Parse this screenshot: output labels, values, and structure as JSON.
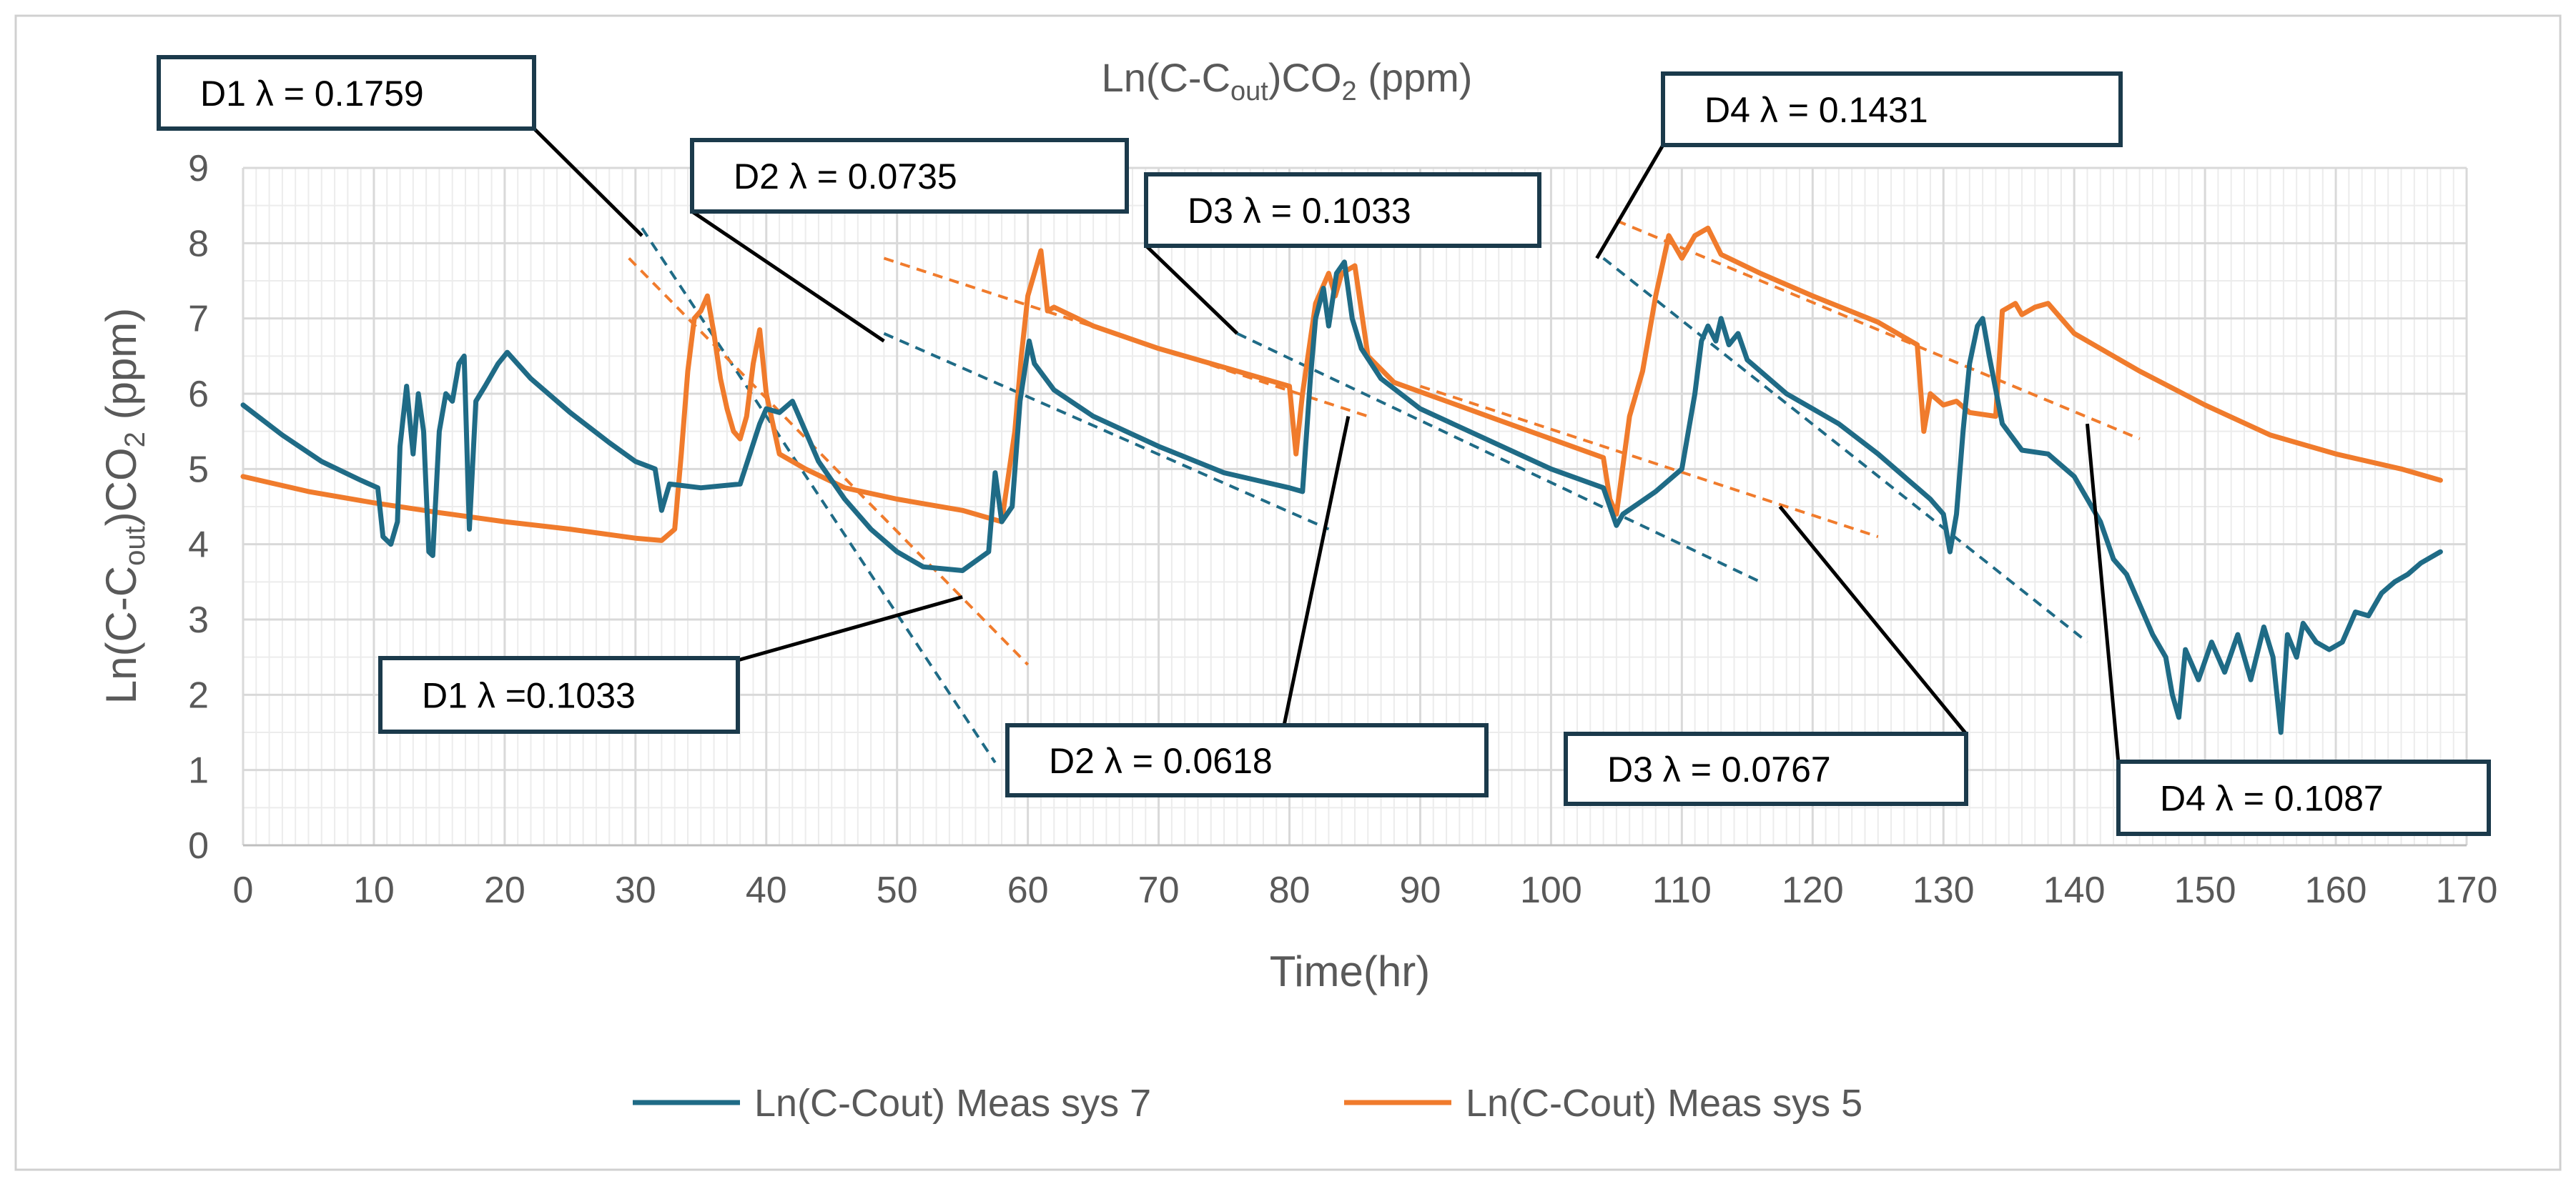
{
  "chart_data": {
    "type": "line",
    "title": "Ln(C-C",
    "title_sub": "out",
    "title_mid": ")CO",
    "title_sub2": "2",
    "title_end": " (ppm)",
    "xlabel": "Time(hr)",
    "ylabel": "Ln(C-C",
    "ylabel_sub": "out",
    "ylabel_mid": ")CO",
    "ylabel_sub2": "2",
    "ylabel_end": " (ppm)",
    "xlim": [
      0,
      170
    ],
    "ylim": [
      0,
      9
    ],
    "x_ticks": [
      "0",
      "10",
      "20",
      "30",
      "40",
      "50",
      "60",
      "70",
      "80",
      "90",
      "100",
      "110",
      "120",
      "130",
      "140",
      "150",
      "160",
      "170"
    ],
    "y_ticks": [
      "0",
      "1",
      "2",
      "3",
      "4",
      "5",
      "6",
      "7",
      "8",
      "9"
    ],
    "colors": {
      "sys7": "#1f6b86",
      "sys5": "#f07b2c",
      "grid": "#d9d9d9",
      "callout_border": "#1b3a4b"
    },
    "series": [
      {
        "name": "Ln(C-Cout) Meas sys 7",
        "color": "#1f6b86",
        "points": [
          [
            0,
            5.85
          ],
          [
            3,
            5.45
          ],
          [
            6,
            5.1
          ],
          [
            9,
            4.85
          ],
          [
            10.3,
            4.75
          ],
          [
            10.7,
            4.1
          ],
          [
            11.3,
            4.0
          ],
          [
            11.8,
            4.3
          ],
          [
            12,
            5.3
          ],
          [
            12.5,
            6.1
          ],
          [
            13,
            5.2
          ],
          [
            13.4,
            6.0
          ],
          [
            13.8,
            5.5
          ],
          [
            14.2,
            3.9
          ],
          [
            14.5,
            3.85
          ],
          [
            15,
            5.5
          ],
          [
            15.5,
            6.0
          ],
          [
            16,
            5.9
          ],
          [
            16.5,
            6.4
          ],
          [
            16.9,
            6.5
          ],
          [
            17.3,
            4.2
          ],
          [
            17.8,
            5.9
          ],
          [
            18.5,
            6.1
          ],
          [
            19.5,
            6.4
          ],
          [
            20.2,
            6.55
          ],
          [
            22,
            6.2
          ],
          [
            25,
            5.75
          ],
          [
            28,
            5.35
          ],
          [
            30,
            5.1
          ],
          [
            31.5,
            5.0
          ],
          [
            32,
            4.45
          ],
          [
            32.6,
            4.8
          ],
          [
            35,
            4.75
          ],
          [
            38,
            4.8
          ],
          [
            39.5,
            5.6
          ],
          [
            40,
            5.8
          ],
          [
            41,
            5.75
          ],
          [
            42,
            5.9
          ],
          [
            44,
            5.1
          ],
          [
            46,
            4.6
          ],
          [
            48,
            4.2
          ],
          [
            50,
            3.9
          ],
          [
            52,
            3.7
          ],
          [
            55,
            3.65
          ],
          [
            57,
            3.9
          ],
          [
            57.5,
            4.95
          ],
          [
            58,
            4.3
          ],
          [
            58.8,
            4.5
          ],
          [
            59.4,
            5.9
          ],
          [
            60.1,
            6.7
          ],
          [
            60.5,
            6.4
          ],
          [
            62,
            6.05
          ],
          [
            65,
            5.7
          ],
          [
            70,
            5.3
          ],
          [
            75,
            4.95
          ],
          [
            80,
            4.75
          ],
          [
            81,
            4.7
          ],
          [
            81.6,
            6.2
          ],
          [
            82,
            7.0
          ],
          [
            82.6,
            7.4
          ],
          [
            83,
            6.9
          ],
          [
            83.6,
            7.6
          ],
          [
            84.2,
            7.75
          ],
          [
            84.8,
            7.0
          ],
          [
            85.5,
            6.6
          ],
          [
            87,
            6.2
          ],
          [
            90,
            5.8
          ],
          [
            95,
            5.4
          ],
          [
            100,
            5.0
          ],
          [
            104,
            4.75
          ],
          [
            105,
            4.25
          ],
          [
            105.5,
            4.4
          ],
          [
            108,
            4.7
          ],
          [
            110,
            5.0
          ],
          [
            111,
            6.0
          ],
          [
            111.5,
            6.7
          ],
          [
            112,
            6.9
          ],
          [
            112.6,
            6.7
          ],
          [
            113,
            7.0
          ],
          [
            113.6,
            6.65
          ],
          [
            114.3,
            6.8
          ],
          [
            115,
            6.45
          ],
          [
            118,
            6.0
          ],
          [
            122,
            5.6
          ],
          [
            125,
            5.2
          ],
          [
            128,
            4.75
          ],
          [
            129,
            4.6
          ],
          [
            130,
            4.4
          ],
          [
            130.5,
            3.9
          ],
          [
            131,
            4.4
          ],
          [
            131.5,
            5.5
          ],
          [
            132,
            6.4
          ],
          [
            132.6,
            6.9
          ],
          [
            133,
            7.0
          ],
          [
            133.5,
            6.5
          ],
          [
            134.5,
            5.6
          ],
          [
            136,
            5.25
          ],
          [
            138,
            5.2
          ],
          [
            140,
            4.9
          ],
          [
            142,
            4.3
          ],
          [
            143,
            3.8
          ],
          [
            144,
            3.6
          ],
          [
            145,
            3.2
          ],
          [
            146,
            2.8
          ],
          [
            147,
            2.5
          ],
          [
            147.5,
            2.0
          ],
          [
            148,
            1.7
          ],
          [
            148.5,
            2.6
          ],
          [
            149.5,
            2.2
          ],
          [
            150.5,
            2.7
          ],
          [
            151.5,
            2.3
          ],
          [
            152.5,
            2.8
          ],
          [
            153.5,
            2.2
          ],
          [
            154.5,
            2.9
          ],
          [
            155.2,
            2.5
          ],
          [
            155.8,
            1.5
          ],
          [
            156.3,
            2.8
          ],
          [
            157,
            2.5
          ],
          [
            157.5,
            2.95
          ],
          [
            158.5,
            2.7
          ],
          [
            159.5,
            2.6
          ],
          [
            160.5,
            2.7
          ],
          [
            161.5,
            3.1
          ],
          [
            162.5,
            3.05
          ],
          [
            163.5,
            3.35
          ],
          [
            164.5,
            3.5
          ],
          [
            165.5,
            3.6
          ],
          [
            166.5,
            3.75
          ],
          [
            168,
            3.9
          ]
        ]
      },
      {
        "name": "Ln(C-Cout) Meas sys 5",
        "color": "#f07b2c",
        "points": [
          [
            0,
            4.9
          ],
          [
            5,
            4.7
          ],
          [
            10,
            4.55
          ],
          [
            15,
            4.42
          ],
          [
            20,
            4.3
          ],
          [
            25,
            4.2
          ],
          [
            30,
            4.08
          ],
          [
            32,
            4.05
          ],
          [
            33,
            4.2
          ],
          [
            33.5,
            5.2
          ],
          [
            34,
            6.3
          ],
          [
            34.5,
            7.0
          ],
          [
            35,
            7.1
          ],
          [
            35.5,
            7.3
          ],
          [
            36,
            6.8
          ],
          [
            36.5,
            6.2
          ],
          [
            37,
            5.8
          ],
          [
            37.5,
            5.5
          ],
          [
            38,
            5.4
          ],
          [
            38.5,
            5.7
          ],
          [
            39,
            6.4
          ],
          [
            39.5,
            6.85
          ],
          [
            40,
            6.0
          ],
          [
            41,
            5.2
          ],
          [
            43,
            5.0
          ],
          [
            46,
            4.75
          ],
          [
            50,
            4.6
          ],
          [
            55,
            4.45
          ],
          [
            58,
            4.3
          ],
          [
            59,
            5.5
          ],
          [
            59.5,
            6.5
          ],
          [
            60,
            7.3
          ],
          [
            61,
            7.9
          ],
          [
            61.5,
            7.1
          ],
          [
            62,
            7.15
          ],
          [
            65,
            6.9
          ],
          [
            70,
            6.6
          ],
          [
            75,
            6.35
          ],
          [
            80,
            6.1
          ],
          [
            80.5,
            5.2
          ],
          [
            81,
            6.0
          ],
          [
            82,
            7.2
          ],
          [
            83,
            7.6
          ],
          [
            83.5,
            7.3
          ],
          [
            84,
            7.6
          ],
          [
            85,
            7.7
          ],
          [
            86,
            6.5
          ],
          [
            88,
            6.15
          ],
          [
            92,
            5.9
          ],
          [
            96,
            5.65
          ],
          [
            100,
            5.4
          ],
          [
            104,
            5.15
          ],
          [
            104.5,
            4.6
          ],
          [
            105,
            4.4
          ],
          [
            106,
            5.7
          ],
          [
            107,
            6.3
          ],
          [
            108,
            7.3
          ],
          [
            109,
            8.1
          ],
          [
            110,
            7.8
          ],
          [
            111,
            8.1
          ],
          [
            112,
            8.2
          ],
          [
            113,
            7.85
          ],
          [
            116,
            7.6
          ],
          [
            120,
            7.3
          ],
          [
            125,
            6.95
          ],
          [
            128,
            6.65
          ],
          [
            128.5,
            5.5
          ],
          [
            129,
            6.0
          ],
          [
            130,
            5.85
          ],
          [
            131,
            5.9
          ],
          [
            132,
            5.75
          ],
          [
            134,
            5.7
          ],
          [
            134.5,
            7.1
          ],
          [
            135.5,
            7.2
          ],
          [
            136,
            7.05
          ],
          [
            137,
            7.15
          ],
          [
            138,
            7.2
          ],
          [
            139,
            7.0
          ],
          [
            140,
            6.8
          ],
          [
            145,
            6.3
          ],
          [
            150,
            5.85
          ],
          [
            155,
            5.45
          ],
          [
            160,
            5.2
          ],
          [
            165,
            5.0
          ],
          [
            168,
            4.85
          ]
        ]
      }
    ],
    "fit_lines": [
      {
        "label": "D1 sys7 fit",
        "color": "#1f6b86",
        "from": [
          30.5,
          8.2
        ],
        "to": [
          57.5,
          1.1
        ]
      },
      {
        "label": "D2 sys7 fit",
        "color": "#1f6b86",
        "from": [
          49,
          6.8
        ],
        "to": [
          83,
          4.2
        ]
      },
      {
        "label": "D3 sys7 fit",
        "color": "#1f6b86",
        "from": [
          76,
          6.8
        ],
        "to": [
          116,
          3.5
        ]
      },
      {
        "label": "D4 sys7 fit",
        "color": "#1f6b86",
        "from": [
          104,
          7.8
        ],
        "to": [
          141,
          2.7
        ]
      },
      {
        "label": "D1 sys5 fit",
        "color": "#f07b2c",
        "from": [
          29.5,
          7.8
        ],
        "to": [
          60,
          2.4
        ]
      },
      {
        "label": "D2 sys5 fit",
        "color": "#f07b2c",
        "from": [
          49,
          7.8
        ],
        "to": [
          86,
          5.7
        ]
      },
      {
        "label": "D3 sys5 fit",
        "color": "#f07b2c",
        "from": [
          90,
          6.1
        ],
        "to": [
          125,
          4.1
        ]
      },
      {
        "label": "D4 sys5 fit",
        "color": "#f07b2c",
        "from": [
          105,
          8.3
        ],
        "to": [
          145,
          5.4
        ]
      }
    ],
    "annotations": [
      {
        "text": "D1 λ = 0.1759",
        "arrow_to": [
          30.5,
          8.1
        ]
      },
      {
        "text": "D2 λ = 0.0735",
        "arrow_to": [
          49,
          6.7
        ]
      },
      {
        "text": "D3 λ = 0.1033",
        "arrow_to": [
          76,
          6.8
        ]
      },
      {
        "text": "D4 λ = 0.1431",
        "arrow_to": [
          103.5,
          7.8
        ]
      },
      {
        "text": "D1 λ =0.1033",
        "arrow_to": [
          55,
          3.3
        ]
      },
      {
        "text": "D2 λ = 0.0618",
        "arrow_to": [
          84.5,
          5.7
        ]
      },
      {
        "text": "D3 λ = 0.0767",
        "arrow_to": [
          117.5,
          4.5
        ]
      },
      {
        "text": "D4 λ =  0.1087",
        "arrow_to": [
          141,
          5.6
        ]
      }
    ],
    "legend": [
      {
        "label": "Ln(C-Cout) Meas sys 7",
        "color": "#1f6b86"
      },
      {
        "label": "Ln(C-Cout) Meas sys 5",
        "color": "#f07b2c"
      }
    ],
    "legend_position": "bottom-center"
  }
}
